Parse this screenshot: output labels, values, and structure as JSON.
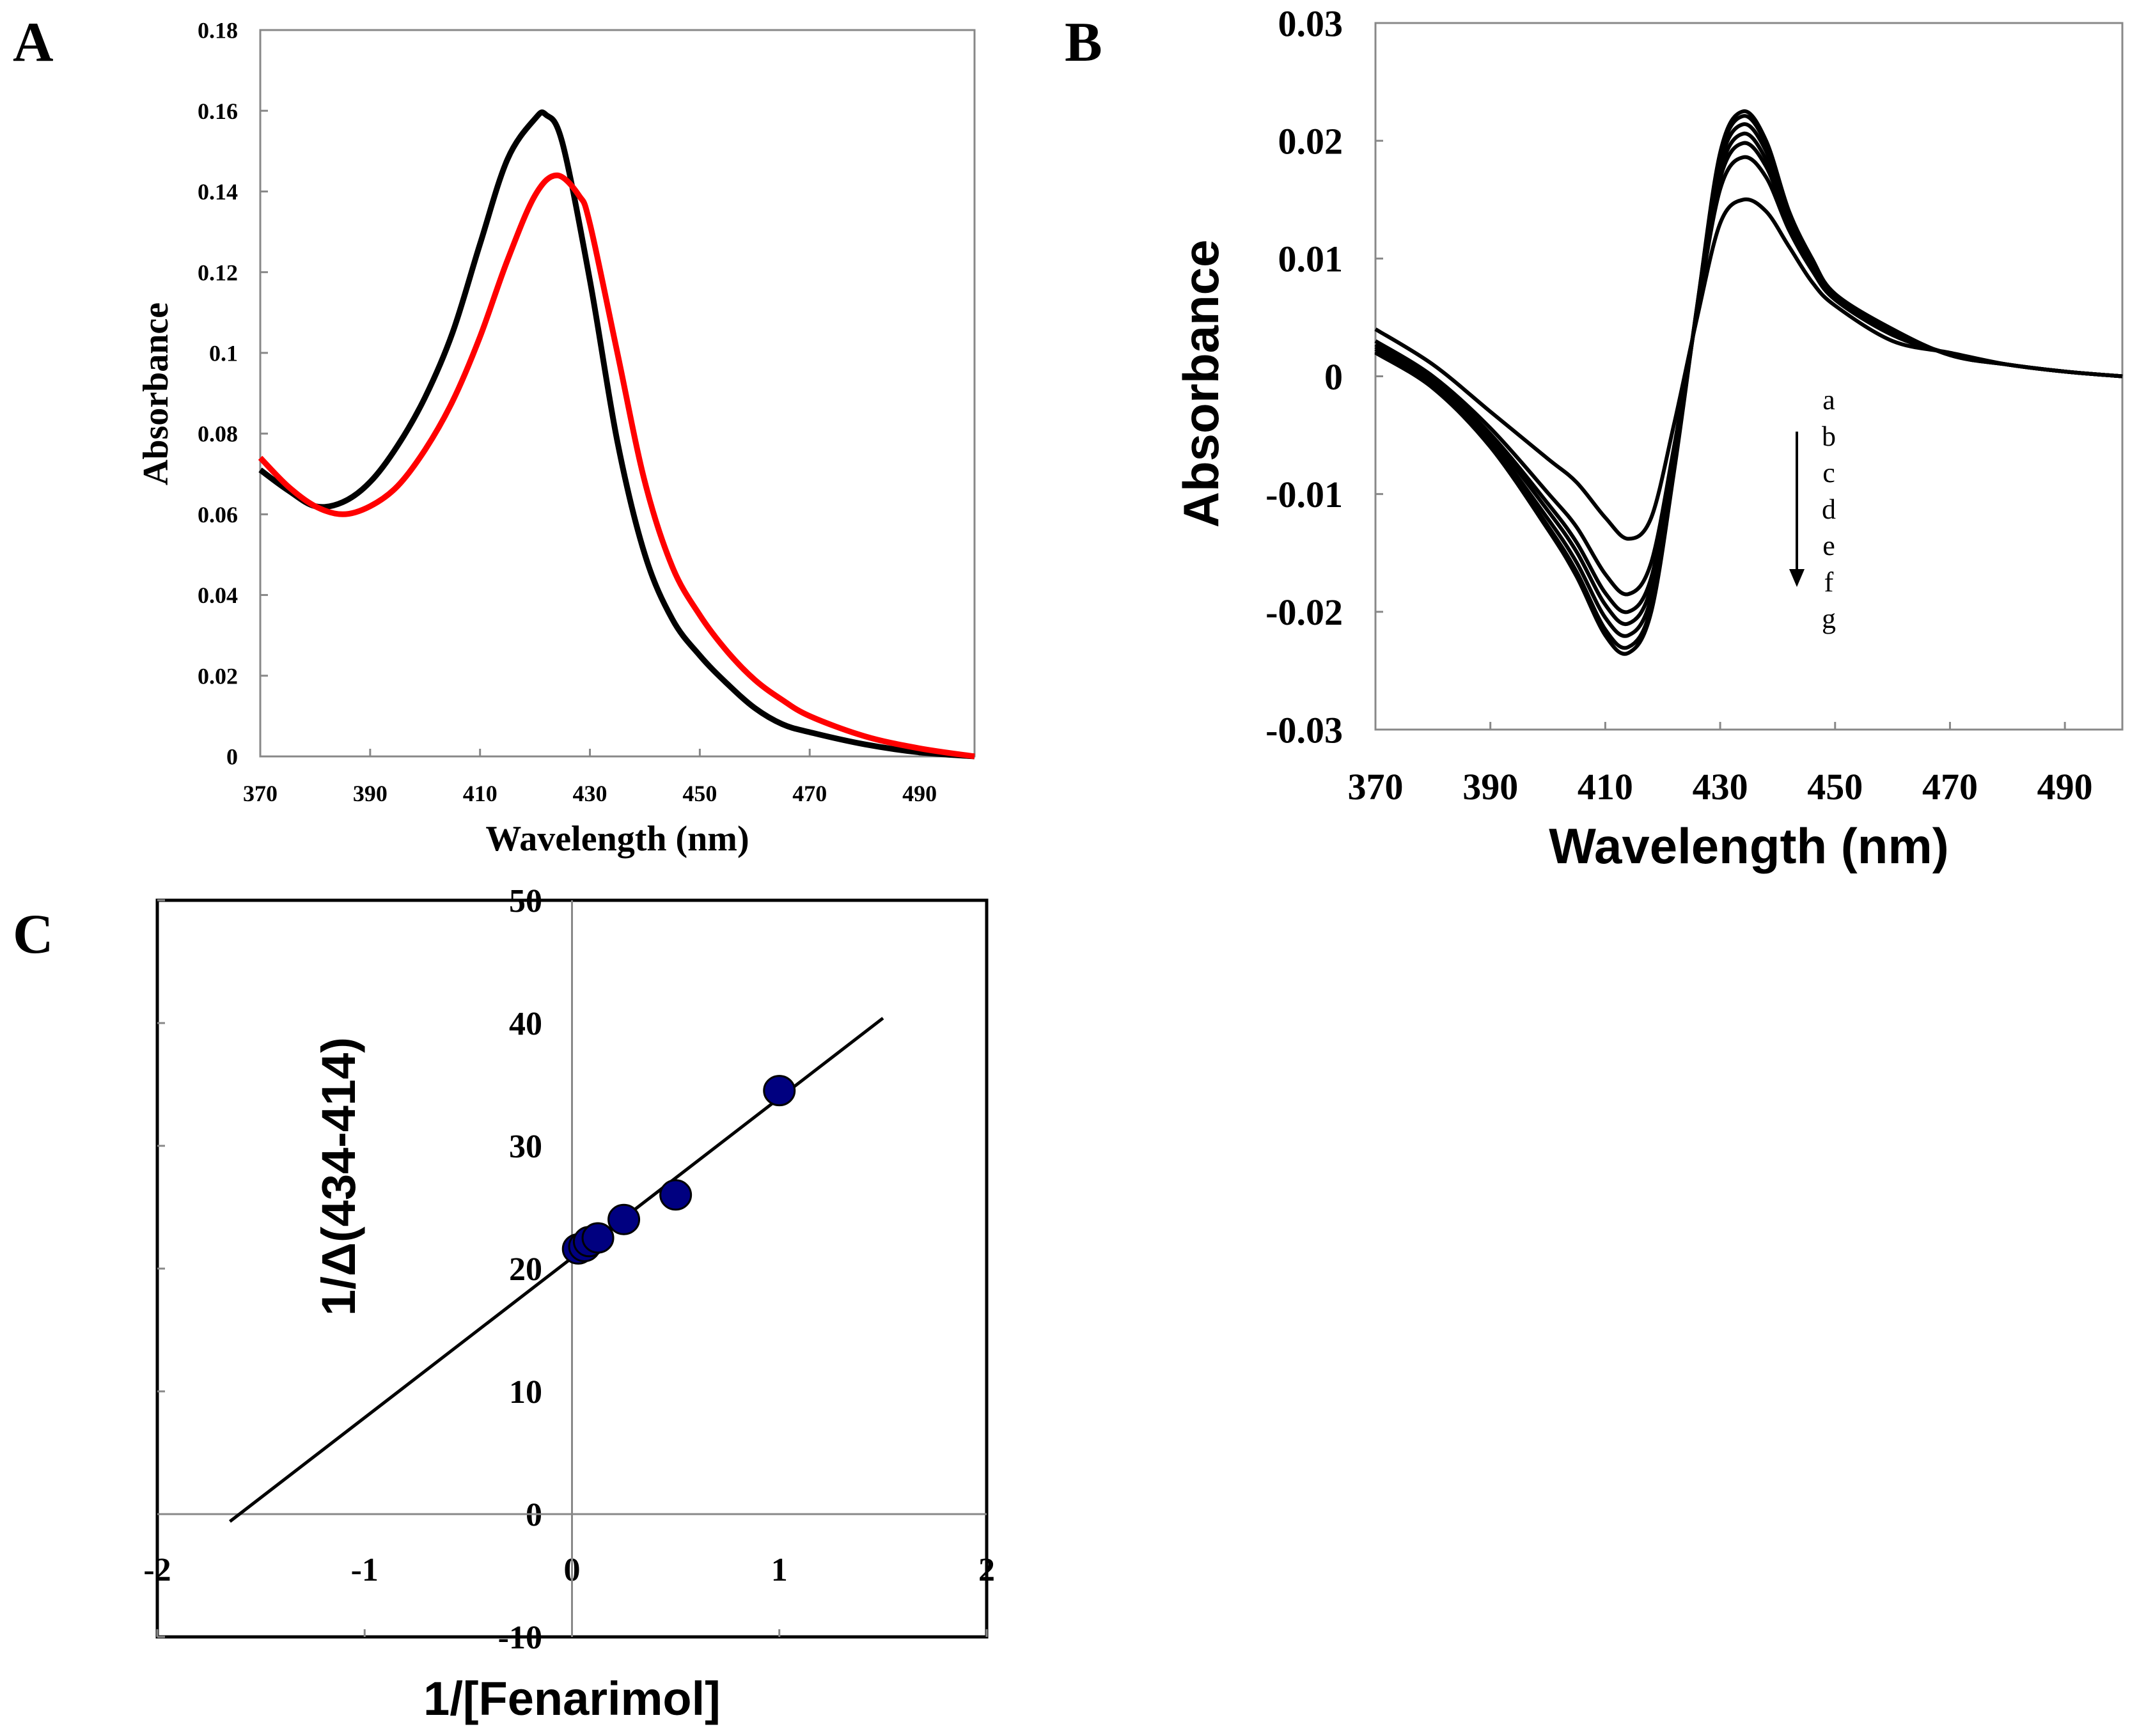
{
  "chart_data": [
    {
      "panel": "A",
      "type": "line",
      "xlabel": "Wavelength (nm)",
      "ylabel": "Absorbance",
      "xlim": [
        370,
        500
      ],
      "ylim": [
        0,
        0.18
      ],
      "xticks": [
        "370",
        "390",
        "410",
        "430",
        "450",
        "470",
        "490"
      ],
      "xtick_values": [
        370,
        390,
        410,
        430,
        450,
        470,
        490
      ],
      "yticks": [
        "0",
        "0.02",
        "0.04",
        "0.06",
        "0.08",
        "0.1",
        "0.12",
        "0.14",
        "0.16",
        "0.18"
      ],
      "ytick_values": [
        0,
        0.02,
        0.04,
        0.06,
        0.08,
        0.1,
        0.12,
        0.14,
        0.16,
        0.18
      ],
      "series": [
        {
          "name": "black",
          "color": "#000000",
          "x": [
            370,
            375,
            380,
            385,
            390,
            395,
            400,
            405,
            410,
            415,
            420,
            422,
            425,
            430,
            435,
            440,
            445,
            450,
            455,
            460,
            465,
            470,
            480,
            490,
            500
          ],
          "y": [
            0.071,
            0.066,
            0.062,
            0.063,
            0.068,
            0.077,
            0.089,
            0.105,
            0.127,
            0.148,
            0.158,
            0.159,
            0.152,
            0.118,
            0.078,
            0.05,
            0.034,
            0.025,
            0.018,
            0.012,
            0.008,
            0.006,
            0.003,
            0.001,
            0
          ]
        },
        {
          "name": "red",
          "color": "#ff0000",
          "x": [
            370,
            375,
            380,
            385,
            390,
            395,
            400,
            405,
            410,
            415,
            420,
            424,
            428,
            430,
            435,
            440,
            445,
            450,
            455,
            460,
            465,
            470,
            480,
            490,
            500
          ],
          "y": [
            0.074,
            0.067,
            0.062,
            0.06,
            0.062,
            0.067,
            0.076,
            0.088,
            0.104,
            0.123,
            0.139,
            0.144,
            0.139,
            0.132,
            0.1,
            0.068,
            0.047,
            0.035,
            0.026,
            0.019,
            0.014,
            0.01,
            0.005,
            0.002,
            0
          ]
        }
      ]
    },
    {
      "panel": "B",
      "type": "line",
      "xlabel": "Wavelength (nm)",
      "ylabel": "Absorbance",
      "xlim": [
        370,
        500
      ],
      "ylim": [
        -0.03,
        0.03
      ],
      "xticks": [
        "370",
        "390",
        "410",
        "430",
        "450",
        "470",
        "490"
      ],
      "xtick_values": [
        370,
        390,
        410,
        430,
        450,
        470,
        490
      ],
      "yticks": [
        "-0.03",
        "-0.02",
        "-0.01",
        "0",
        "0.01",
        "0.02",
        "0.03"
      ],
      "ytick_values": [
        -0.03,
        -0.02,
        -0.01,
        0,
        0.01,
        0.02,
        0.03
      ],
      "x": [
        370,
        380,
        390,
        400,
        405,
        410,
        414,
        418,
        422,
        426,
        430,
        434,
        438,
        442,
        446,
        450,
        460,
        470,
        480,
        490,
        500
      ],
      "legend": [
        "a",
        "b",
        "c",
        "d",
        "e",
        "f",
        "g"
      ],
      "series": [
        {
          "name": "a",
          "values": [
            0.004,
            0.001,
            -0.003,
            -0.007,
            -0.009,
            -0.012,
            -0.0138,
            -0.012,
            -0.004,
            0.005,
            0.013,
            0.015,
            0.014,
            0.011,
            0.008,
            0.006,
            0.003,
            0.002,
            0.001,
            0.0004,
            0
          ]
        },
        {
          "name": "b",
          "values": [
            0.003,
            0.0,
            -0.0044,
            -0.0099,
            -0.0128,
            -0.0168,
            -0.0185,
            -0.0158,
            -0.0059,
            0.0055,
            0.0159,
            0.0186,
            0.0169,
            0.0124,
            0.009,
            0.0065,
            0.0035,
            0.0019,
            0.001,
            0.0004,
            0
          ]
        },
        {
          "name": "c",
          "values": [
            0.0027,
            -0.0003,
            -0.0049,
            -0.0108,
            -0.0141,
            -0.0184,
            -0.02,
            -0.0171,
            -0.0066,
            0.0056,
            0.0168,
            0.0198,
            0.0178,
            0.0129,
            0.0093,
            0.0066,
            0.0036,
            0.0019,
            0.001,
            0.0004,
            0
          ]
        },
        {
          "name": "d",
          "values": [
            0.0025,
            -0.0005,
            -0.0052,
            -0.0114,
            -0.0149,
            -0.0194,
            -0.021,
            -0.0179,
            -0.007,
            0.0057,
            0.0174,
            0.0206,
            0.0184,
            0.0132,
            0.0095,
            0.0067,
            0.0037,
            0.0019,
            0.001,
            0.0004,
            0
          ]
        },
        {
          "name": "e",
          "values": [
            0.0023,
            -0.0007,
            -0.0056,
            -0.0121,
            -0.0158,
            -0.0205,
            -0.022,
            -0.0188,
            -0.0074,
            0.0059,
            0.0181,
            0.0214,
            0.0191,
            0.0136,
            0.0097,
            0.0069,
            0.0039,
            0.0018,
            0.001,
            0.0004,
            0
          ]
        },
        {
          "name": "f",
          "values": [
            0.0021,
            -0.0009,
            -0.0059,
            -0.0127,
            -0.0166,
            -0.0215,
            -0.023,
            -0.0196,
            -0.0078,
            0.006,
            0.0187,
            0.0221,
            0.0197,
            0.0139,
            0.0099,
            0.007,
            0.004,
            0.0018,
            0.001,
            0.0004,
            0
          ]
        },
        {
          "name": "g",
          "values": [
            0.002,
            -0.001,
            -0.006,
            -0.013,
            -0.017,
            -0.022,
            -0.0235,
            -0.02,
            -0.008,
            0.006,
            0.019,
            0.0225,
            0.02,
            0.014,
            0.01,
            0.007,
            0.004,
            0.0018,
            0.001,
            0.0004,
            0
          ]
        }
      ]
    },
    {
      "panel": "C",
      "type": "scatter",
      "xlabel": "1/[Fenarimol]",
      "ylabel": "1/Δ(434-414)",
      "xlim": [
        -2,
        2
      ],
      "ylim": [
        -10,
        50
      ],
      "xticks": [
        "-2",
        "-1",
        "0",
        "1",
        "2"
      ],
      "xtick_values": [
        -2,
        -1,
        0,
        1,
        2
      ],
      "yticks": [
        "-10",
        "0",
        "10",
        "20",
        "30",
        "40",
        "50"
      ],
      "ytick_values": [
        -10,
        0,
        10,
        20,
        30,
        40,
        50
      ],
      "points": {
        "color": "#000080",
        "x": [
          0.03,
          0.06,
          0.083,
          0.125,
          0.25,
          0.5,
          1.0
        ],
        "y": [
          21.6,
          21.8,
          22.2,
          22.5,
          24.0,
          26.0,
          34.5
        ]
      },
      "fit_line": {
        "x": [
          -1.65,
          1.5
        ],
        "y": [
          -0.6,
          40.4
        ]
      }
    }
  ],
  "panel_labels": [
    "A",
    "B",
    "C"
  ]
}
